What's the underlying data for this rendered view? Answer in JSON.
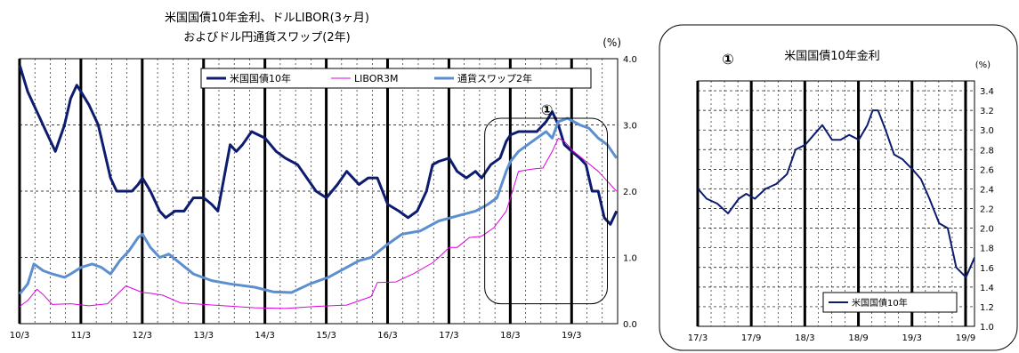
{
  "chart_data": [
    {
      "type": "line",
      "title_line1": "米国国債10年金利、ドルLIBOR(3ヶ月)",
      "title_line2": "およびドル円通貨スワップ(2年)",
      "unit": "(%)",
      "ylim": [
        0.0,
        4.0
      ],
      "yticks": [
        "0.0",
        "1.0",
        "2.0",
        "3.0",
        "4.0"
      ],
      "xticks": [
        "10/3",
        "11/3",
        "12/3",
        "13/3",
        "14/3",
        "15/3",
        "16/3",
        "17/3",
        "18/3",
        "19/3"
      ],
      "xrange": [
        2010.167,
        2019.917
      ],
      "grid": true,
      "legend_position": "top-right",
      "annotation": "①",
      "annotation_box_x": [
        2017.75,
        2019.75
      ],
      "annotation_box_y": [
        0.3,
        3.1
      ],
      "series": [
        {
          "name": "米国国債10年",
          "color": "#0d1c6e",
          "stroke": 3,
          "x": [
            2010.17,
            2010.3,
            2010.45,
            2010.6,
            2010.75,
            2010.9,
            2011.0,
            2011.1,
            2011.17,
            2011.3,
            2011.45,
            2011.55,
            2011.65,
            2011.75,
            2011.9,
            2012.0,
            2012.1,
            2012.17,
            2012.3,
            2012.45,
            2012.55,
            2012.7,
            2012.85,
            2013.0,
            2013.17,
            2013.3,
            2013.4,
            2013.5,
            2013.6,
            2013.7,
            2013.8,
            2013.95,
            2014.17,
            2014.35,
            2014.5,
            2014.7,
            2014.85,
            2015.0,
            2015.17,
            2015.35,
            2015.5,
            2015.7,
            2015.85,
            2016.0,
            2016.17,
            2016.35,
            2016.5,
            2016.65,
            2016.8,
            2016.9,
            2017.0,
            2017.17,
            2017.3,
            2017.45,
            2017.6,
            2017.7,
            2017.85,
            2018.0,
            2018.1,
            2018.17,
            2018.3,
            2018.45,
            2018.6,
            2018.75,
            2018.85,
            2018.95,
            2019.05,
            2019.17,
            2019.3,
            2019.4,
            2019.5,
            2019.6,
            2019.7,
            2019.8,
            2019.9
          ],
          "values": [
            3.9,
            3.5,
            3.2,
            2.9,
            2.6,
            3.0,
            3.4,
            3.6,
            3.5,
            3.3,
            3.0,
            2.6,
            2.2,
            2.0,
            2.0,
            2.0,
            2.1,
            2.2,
            2.0,
            1.7,
            1.6,
            1.7,
            1.7,
            1.9,
            1.9,
            1.8,
            1.7,
            2.2,
            2.7,
            2.6,
            2.7,
            2.9,
            2.8,
            2.6,
            2.5,
            2.4,
            2.2,
            2.0,
            1.9,
            2.1,
            2.3,
            2.1,
            2.2,
            2.2,
            1.8,
            1.7,
            1.6,
            1.7,
            2.0,
            2.4,
            2.45,
            2.5,
            2.3,
            2.2,
            2.3,
            2.2,
            2.4,
            2.5,
            2.75,
            2.85,
            2.9,
            2.9,
            2.9,
            3.05,
            3.2,
            3.0,
            2.7,
            2.6,
            2.5,
            2.4,
            2.0,
            2.0,
            1.6,
            1.5,
            1.7
          ]
        },
        {
          "name": "LIBOR3M",
          "color": "#e000e0",
          "stroke": 1,
          "x": [
            2010.17,
            2010.3,
            2010.45,
            2010.55,
            2010.7,
            2011.0,
            2011.3,
            2011.6,
            2011.9,
            2012.17,
            2012.3,
            2012.5,
            2012.8,
            2013.0,
            2013.5,
            2014.0,
            2014.5,
            2015.0,
            2015.5,
            2015.9,
            2016.0,
            2016.3,
            2016.6,
            2016.9,
            2017.0,
            2017.17,
            2017.3,
            2017.5,
            2017.7,
            2017.9,
            2018.1,
            2018.17,
            2018.3,
            2018.5,
            2018.7,
            2018.85,
            2018.95,
            2019.05,
            2019.2,
            2019.4,
            2019.6,
            2019.75,
            2019.9
          ],
          "values": [
            0.26,
            0.35,
            0.52,
            0.44,
            0.29,
            0.3,
            0.27,
            0.3,
            0.57,
            0.47,
            0.46,
            0.43,
            0.31,
            0.3,
            0.27,
            0.24,
            0.23,
            0.26,
            0.28,
            0.41,
            0.62,
            0.63,
            0.76,
            0.92,
            1.0,
            1.15,
            1.15,
            1.3,
            1.32,
            1.45,
            1.7,
            1.9,
            2.3,
            2.33,
            2.35,
            2.6,
            2.8,
            2.75,
            2.6,
            2.45,
            2.3,
            2.15,
            2.0
          ]
        },
        {
          "name": "通貨スワップ2年",
          "color": "#5b8fd0",
          "stroke": 3,
          "x": [
            2010.17,
            2010.3,
            2010.4,
            2010.55,
            2010.7,
            2010.9,
            2011.0,
            2011.17,
            2011.35,
            2011.5,
            2011.65,
            2011.8,
            2011.95,
            2012.1,
            2012.17,
            2012.3,
            2012.45,
            2012.6,
            2012.8,
            2013.0,
            2013.3,
            2013.6,
            2014.0,
            2014.3,
            2014.6,
            2014.9,
            2015.2,
            2015.5,
            2015.7,
            2015.9,
            2016.17,
            2016.4,
            2016.7,
            2017.0,
            2017.2,
            2017.4,
            2017.6,
            2017.8,
            2017.95,
            2018.1,
            2018.17,
            2018.3,
            2018.45,
            2018.6,
            2018.75,
            2018.85,
            2018.95,
            2019.1,
            2019.3,
            2019.45,
            2019.6,
            2019.75,
            2019.9
          ],
          "values": [
            0.45,
            0.6,
            0.9,
            0.8,
            0.75,
            0.7,
            0.75,
            0.85,
            0.9,
            0.85,
            0.75,
            0.95,
            1.1,
            1.3,
            1.35,
            1.15,
            1.0,
            1.05,
            0.9,
            0.75,
            0.65,
            0.6,
            0.55,
            0.48,
            0.47,
            0.6,
            0.7,
            0.85,
            0.95,
            1.0,
            1.2,
            1.35,
            1.4,
            1.55,
            1.6,
            1.65,
            1.7,
            1.8,
            1.9,
            2.3,
            2.45,
            2.6,
            2.7,
            2.8,
            2.9,
            2.8,
            3.05,
            3.1,
            3.0,
            2.95,
            2.8,
            2.7,
            2.5
          ]
        }
      ]
    },
    {
      "type": "line",
      "title": "米国国債10年金利",
      "annotation": "①",
      "unit": "(%)",
      "ylim": [
        1.0,
        3.5
      ],
      "yticks": [
        "1.0",
        "1.2",
        "1.4",
        "1.6",
        "1.8",
        "2.0",
        "2.2",
        "2.4",
        "2.6",
        "2.8",
        "3.0",
        "3.2",
        "3.4"
      ],
      "xticks": [
        "17/3",
        "17/9",
        "18/3",
        "18/9",
        "19/3",
        "19/9"
      ],
      "xrange": [
        2017.167,
        2019.75
      ],
      "grid": true,
      "legend_position": "bottom-right",
      "series": [
        {
          "name": "米国国債10年",
          "color": "#0d1c6e",
          "stroke": 2,
          "x": [
            2017.17,
            2017.25,
            2017.35,
            2017.45,
            2017.55,
            2017.62,
            2017.7,
            2017.8,
            2017.9,
            2018.0,
            2018.08,
            2018.17,
            2018.25,
            2018.33,
            2018.42,
            2018.5,
            2018.58,
            2018.67,
            2018.75,
            2018.8,
            2018.85,
            2018.92,
            2019.0,
            2019.08,
            2019.17,
            2019.25,
            2019.33,
            2019.42,
            2019.5,
            2019.58,
            2019.67,
            2019.75
          ],
          "values": [
            2.4,
            2.3,
            2.25,
            2.15,
            2.3,
            2.35,
            2.3,
            2.4,
            2.45,
            2.55,
            2.8,
            2.85,
            2.95,
            3.05,
            2.9,
            2.9,
            2.95,
            2.9,
            3.05,
            3.2,
            3.2,
            3.0,
            2.75,
            2.7,
            2.6,
            2.5,
            2.3,
            2.05,
            2.0,
            1.6,
            1.5,
            1.7
          ]
        }
      ]
    }
  ]
}
